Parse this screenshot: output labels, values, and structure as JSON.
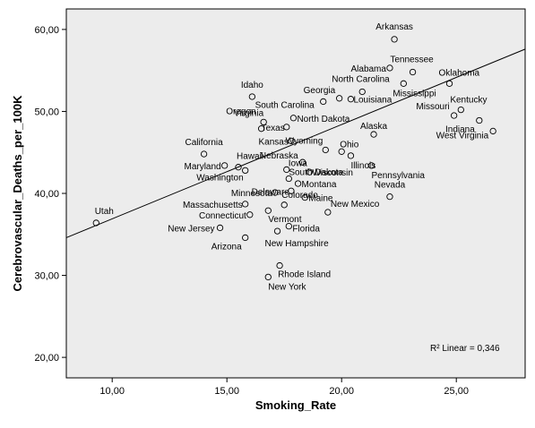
{
  "chart_data": {
    "type": "scatter",
    "xlabel": "Smoking_Rate",
    "ylabel": "Cerebrovascular_Deaths_per_100K",
    "xlim": [
      8.0,
      28.0
    ],
    "ylim": [
      17.5,
      62.5
    ],
    "xticks": [
      10,
      15,
      20,
      25
    ],
    "yticks": [
      20,
      30,
      40,
      50,
      60
    ],
    "xtick_labels": [
      "10,00",
      "15,00",
      "20,00",
      "25,00"
    ],
    "ytick_labels": [
      "20,00",
      "30,00",
      "40,00",
      "50,00",
      "60,00"
    ],
    "grid": false,
    "background": "#ececec",
    "point_color": "#000000",
    "fit_line": {
      "slope": 1.15,
      "intercept": 25.4
    },
    "r2_label": "R² Linear = 0,346",
    "points": [
      {
        "label": "Arkansas",
        "x": 22.3,
        "y": 58.8
      },
      {
        "label": "Tennessee",
        "x": 23.1,
        "y": 54.8
      },
      {
        "label": "Alabama",
        "x": 22.1,
        "y": 55.3
      },
      {
        "label": "Oklahoma",
        "x": 24.7,
        "y": 53.4
      },
      {
        "label": "Mississippi",
        "x": 22.7,
        "y": 53.4
      },
      {
        "label": "North Carolina",
        "x": 20.9,
        "y": 52.4
      },
      {
        "label": "Georgia",
        "x": 19.9,
        "y": 51.6
      },
      {
        "label": "Louisiana",
        "x": 20.4,
        "y": 51.5
      },
      {
        "label": "South Carolina",
        "x": 19.2,
        "y": 51.2
      },
      {
        "label": "Idaho",
        "x": 16.1,
        "y": 51.8
      },
      {
        "label": "Kentucky",
        "x": 25.2,
        "y": 50.2
      },
      {
        "label": "Missouri",
        "x": 24.9,
        "y": 49.5
      },
      {
        "label": "Virginia",
        "x": 16.6,
        "y": 48.7
      },
      {
        "label": "North Dakota",
        "x": 17.9,
        "y": 49.2
      },
      {
        "label": "Oregon",
        "x": 16.5,
        "y": 47.9
      },
      {
        "label": "Texas",
        "x": 17.6,
        "y": 48.1
      },
      {
        "label": "Indiana",
        "x": 26.0,
        "y": 48.9
      },
      {
        "label": "West Virginia",
        "x": 26.6,
        "y": 47.6
      },
      {
        "label": "Alaska",
        "x": 21.4,
        "y": 47.2
      },
      {
        "label": "Kansas",
        "x": 17.8,
        "y": 46.4
      },
      {
        "label": "Wyoming",
        "x": 19.3,
        "y": 45.3
      },
      {
        "label": "Ohio",
        "x": 20.0,
        "y": 45.1
      },
      {
        "label": "Illinois",
        "x": 20.4,
        "y": 44.6
      },
      {
        "label": "California",
        "x": 14.0,
        "y": 44.8
      },
      {
        "label": "Nebraska",
        "x": 18.3,
        "y": 43.8
      },
      {
        "label": "Hawaii",
        "x": 15.5,
        "y": 43.2
      },
      {
        "label": "Maryland",
        "x": 14.9,
        "y": 43.4
      },
      {
        "label": "Iowa",
        "x": 17.6,
        "y": 42.9
      },
      {
        "label": "Wisconsin",
        "x": 18.6,
        "y": 42.6
      },
      {
        "label": "Pennsylvania",
        "x": 21.3,
        "y": 43.4
      },
      {
        "label": "Washington",
        "x": 15.8,
        "y": 42.8
      },
      {
        "label": "South Dakota",
        "x": 17.7,
        "y": 41.8
      },
      {
        "label": "Montana",
        "x": 18.1,
        "y": 41.2
      },
      {
        "label": "Nevada",
        "x": 22.1,
        "y": 39.6
      },
      {
        "label": "Minnesota",
        "x": 17.1,
        "y": 40.1
      },
      {
        "label": "Delaware",
        "x": 17.8,
        "y": 40.3
      },
      {
        "label": "Maine",
        "x": 18.4,
        "y": 39.5
      },
      {
        "label": "Massachusetts",
        "x": 15.8,
        "y": 38.7
      },
      {
        "label": "Colorado",
        "x": 17.5,
        "y": 38.6
      },
      {
        "label": "New Mexico",
        "x": 19.4,
        "y": 37.7
      },
      {
        "label": "Connecticut",
        "x": 16.0,
        "y": 37.4
      },
      {
        "label": "Vermont",
        "x": 16.8,
        "y": 37.9
      },
      {
        "label": "Utah",
        "x": 9.3,
        "y": 36.4
      },
      {
        "label": "Florida",
        "x": 17.7,
        "y": 36.0
      },
      {
        "label": "New Jersey",
        "x": 14.7,
        "y": 35.8
      },
      {
        "label": "New Hampshire",
        "x": 17.2,
        "y": 35.4
      },
      {
        "label": "Arizona",
        "x": 15.8,
        "y": 34.6
      },
      {
        "label": "Rhode Island",
        "x": 17.3,
        "y": 31.2
      },
      {
        "label": "New York",
        "x": 16.8,
        "y": 29.8
      }
    ]
  }
}
